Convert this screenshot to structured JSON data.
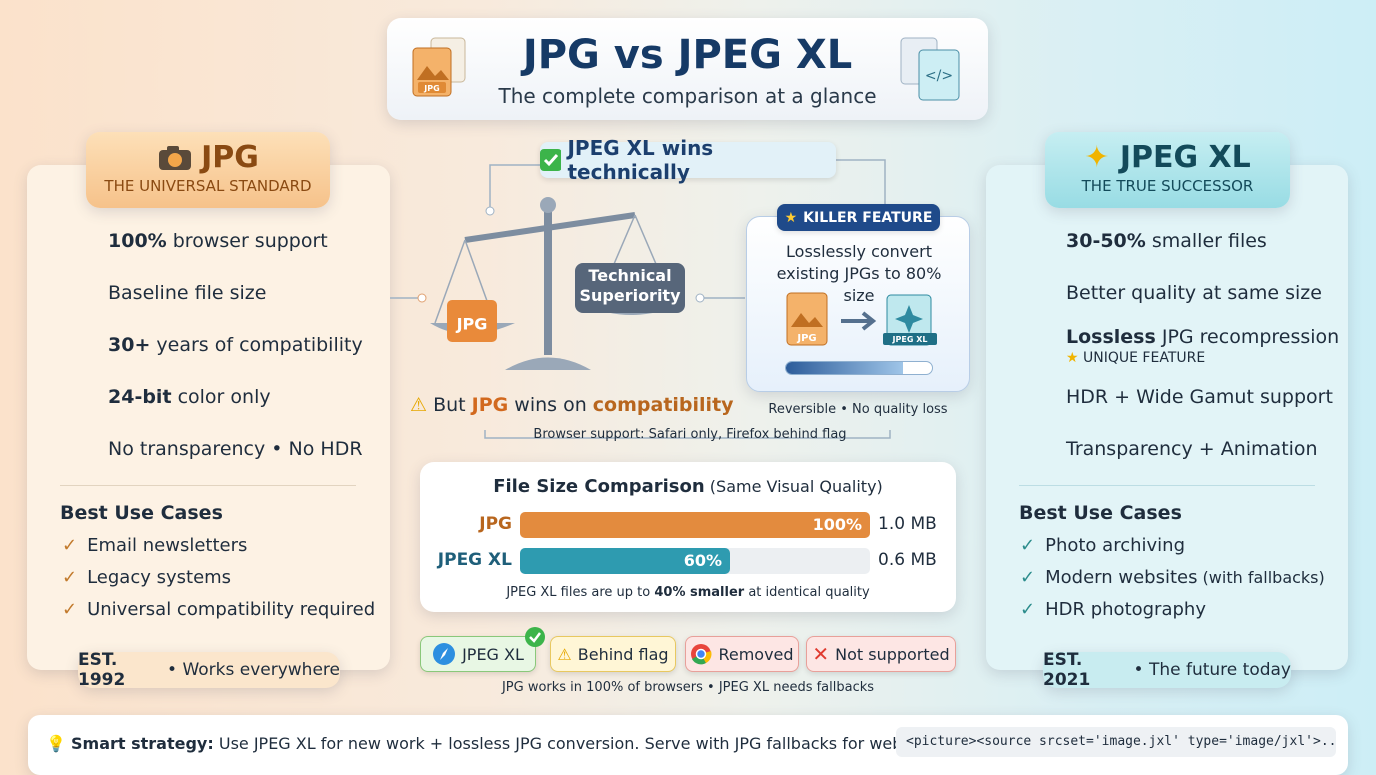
{
  "header": {
    "title": "JPG vs JPEG XL",
    "subtitle": "The complete comparison at a glance",
    "icon_label": "JPG"
  },
  "left": {
    "title": "JPG",
    "subtitle": "THE UNIVERSAL STANDARD",
    "features": [
      {
        "bold": "100%",
        "text": " browser support"
      },
      {
        "text": "Baseline file size"
      },
      {
        "bold": "30+",
        "text": " years of compatibility"
      },
      {
        "bold": "24-bit",
        "text": " color only"
      },
      {
        "text": "No transparency • No HDR"
      }
    ],
    "use_cases_title": "Best Use Cases",
    "use_cases": [
      "Email newsletters",
      "Legacy systems",
      "Universal compatibility required"
    ],
    "footer": {
      "bold": "EST. 1992",
      "text": " • Works everywhere"
    }
  },
  "center": {
    "verdict": "JPEG XL wins technically",
    "scale_left": "JPG",
    "scale_right": "Technical Superiority",
    "caveat": [
      "But ",
      "JPG",
      " wins on ",
      "compatibility"
    ],
    "caveat_note": "Browser support: Safari only, Firefox behind flag",
    "killer": {
      "label": "KILLER FEATURE",
      "text": "Losslessly convert existing JPGs to 80% size",
      "from": "JPG",
      "to": "JPEG XL",
      "note": "Reversible • No quality loss"
    },
    "file_size": {
      "title": "File Size Comparison",
      "subtitle": " (Same Visual Quality)",
      "bars": [
        {
          "name": "JPG",
          "value": 100,
          "value_label": "100%",
          "size": "1.0 MB",
          "color": "#e38b3e"
        },
        {
          "name": "JPEG XL",
          "value": 60,
          "value_label": "60%",
          "size": "0.6 MB",
          "color": "#2e9bb0"
        }
      ],
      "note": [
        "JPEG XL files are up to ",
        "40% smaller",
        " at identical quality"
      ]
    },
    "browsers": [
      "JPEG XL",
      "Behind flag",
      "Removed",
      "Not supported"
    ],
    "browsers_note": "JPG works in 100% of browsers • JPEG XL needs fallbacks"
  },
  "right": {
    "title": "JPEG XL",
    "subtitle": "THE TRUE SUCCESSOR",
    "features": [
      {
        "bold": "30-50%",
        "text": " smaller files"
      },
      {
        "text": "Better quality at same size"
      },
      {
        "bold": "Lossless",
        "text": " JPG recompression",
        "sub": "UNIQUE FEATURE"
      },
      {
        "text": "HDR + Wide Gamut support"
      },
      {
        "text": "Transparency + Animation"
      }
    ],
    "use_cases_title": "Best Use Cases",
    "use_cases": [
      {
        "text": "Photo archiving"
      },
      {
        "text": "Modern websites",
        "extra": " (with fallbacks)"
      },
      {
        "text": "HDR photography"
      }
    ],
    "footer": {
      "bold": "EST. 2021",
      "text": " • The future today"
    }
  },
  "strategy": {
    "bold": "Smart strategy:",
    "text": " Use JPEG XL for new work + lossless JPG conversion. Serve with JPG fallbacks for web.",
    "code": "<picture><source srcset='image.jxl' type='image/jxl'>..."
  }
}
